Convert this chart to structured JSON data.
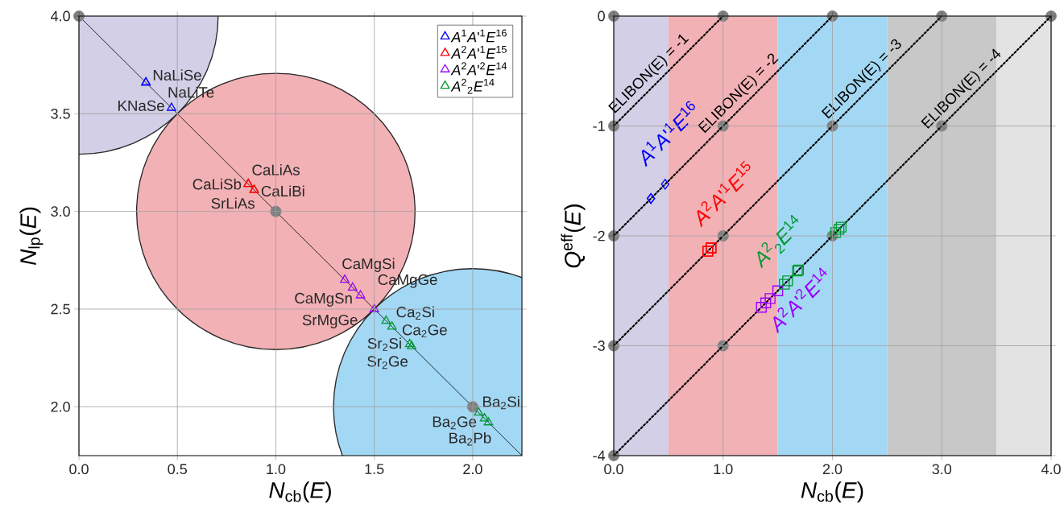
{
  "chart_data": [
    {
      "type": "scatter",
      "xlabel": "*N*$_{cb}$(*E*)",
      "ylabel": "*N*$_{lp}$(*E*)",
      "xlim": [
        0,
        2.25
      ],
      "ylim": [
        1.75,
        4
      ],
      "xticks": [
        {
          "value": 0,
          "label": "0.0"
        },
        {
          "value": 0.5,
          "label": "0.5"
        },
        {
          "value": 1,
          "label": "1.0"
        },
        {
          "value": 1.5,
          "label": "1.5"
        },
        {
          "value": 2,
          "label": "2.0"
        }
      ],
      "yticks": [
        {
          "value": 2,
          "label": "2.0"
        },
        {
          "value": 2.5,
          "label": "2.5"
        },
        {
          "value": 3,
          "label": "3.0"
        },
        {
          "value": 3.5,
          "label": "3.5"
        },
        {
          "value": 4,
          "label": "4.0"
        }
      ],
      "grid": true,
      "legend": "top right",
      "marker": "triangle",
      "series": [
        {
          "type": "line",
          "marker": "none",
          "color": "#000000",
          "x": [
            0,
            2.25
          ],
          "values": [
            4,
            1.75
          ]
        },
        {
          "type": "scatter",
          "marker": "circle",
          "color": "#808080",
          "x": [
            0,
            1,
            2
          ],
          "values": [
            4,
            3,
            2
          ]
        },
        {
          "name": "*A*$^{1}$*A*'$^{1}$*E*$^{16}$",
          "color": "#0000ff",
          "x": [
            0.34,
            0.34,
            0.47
          ],
          "values": [
            3.66,
            3.66,
            3.53
          ]
        },
        {
          "name": "*A*$^{2}$*A*'$^{1}$*E*$^{15}$",
          "color": "#ff0000",
          "x": [
            0.86,
            0.86,
            0.89,
            0.89
          ],
          "values": [
            3.14,
            3.14,
            3.11,
            3.11
          ]
        },
        {
          "name": "*A*$^{2}$*A*'$^{2}$*E*$^{14}$",
          "color": "#9900ff",
          "x": [
            1.35,
            1.39,
            1.43,
            1.5
          ],
          "values": [
            2.65,
            2.61,
            2.57,
            2.5
          ]
        },
        {
          "name": "*A*$^{2}$$_{2}$*E*$^{14}$",
          "color": "#009933",
          "x": [
            1.56,
            1.59,
            1.68,
            1.69,
            2.03,
            2.06,
            2.08
          ],
          "values": [
            2.44,
            2.41,
            2.32,
            2.31,
            1.97,
            1.94,
            1.92
          ]
        }
      ],
      "annotations": [
        {
          "text": "NaLiSe",
          "x": 0.34,
          "y": 3.66
        },
        {
          "text": "NaLiTe",
          "x": 0.34,
          "y": 3.66
        },
        {
          "text": "KNaSe",
          "x": 0.47,
          "y": 3.53
        },
        {
          "text": "CaLiAs",
          "x": 0.86,
          "y": 3.14
        },
        {
          "text": "CaLiSb",
          "x": 0.86,
          "y": 3.14
        },
        {
          "text": "SrLiAs",
          "x": 0.89,
          "y": 3.11
        },
        {
          "text": "CaLiBi",
          "x": 0.89,
          "y": 3.11
        },
        {
          "text": "CaMgSi",
          "x": 1.35,
          "y": 2.65
        },
        {
          "text": "CaMgGe",
          "x": 1.39,
          "y": 2.61
        },
        {
          "text": "CaMgSn",
          "x": 1.43,
          "y": 2.57
        },
        {
          "text": "SrMgGe",
          "x": 1.5,
          "y": 2.5
        },
        {
          "text": "Ca$_{2}$Si",
          "x": 1.56,
          "y": 2.44
        },
        {
          "text": "Ca$_{2}$Ge",
          "x": 1.59,
          "y": 2.41
        },
        {
          "text": "Sr$_{2}$Si",
          "x": 1.68,
          "y": 2.32
        },
        {
          "text": "Sr$_{2}$Ge",
          "x": 1.69,
          "y": 2.31
        },
        {
          "text": "Ba$_{2}$Si",
          "x": 2.03,
          "y": 1.97
        },
        {
          "text": "Ba$_{2}$Ge",
          "x": 2.06,
          "y": 1.94
        },
        {
          "text": "Ba$_{2}$Pb",
          "x": 2.08,
          "y": 1.92
        }
      ]
    },
    {
      "type": "scatter",
      "xlabel": "*N*$_{cb}$(*E*)",
      "ylabel": "*Q*$^{eff}$(*E*)",
      "xlim": [
        0,
        4
      ],
      "ylim": [
        -4,
        0
      ],
      "xticks": [
        {
          "value": 0,
          "label": "0.0"
        },
        {
          "value": 1,
          "label": "1.0"
        },
        {
          "value": 2,
          "label": "2.0"
        },
        {
          "value": 3,
          "label": "3.0"
        },
        {
          "value": 4,
          "label": "4.0"
        }
      ],
      "yticks": [
        -4,
        -3,
        -2,
        -1,
        0
      ],
      "grid": true,
      "marker": "square",
      "bands": [
        {
          "axis": "x",
          "from": 0,
          "to": 0.5,
          "color": "#d2cfe6"
        },
        {
          "axis": "x",
          "from": 0.5,
          "to": 1.5,
          "color": "#f2b1b5"
        },
        {
          "axis": "x",
          "from": 1.5,
          "to": 2.5,
          "color": "#a3d8f4"
        },
        {
          "axis": "x",
          "from": 2.5,
          "to": 3.5,
          "color": "#c8c8c8"
        },
        {
          "axis": "x",
          "from": 3.5,
          "to": 4,
          "color": "#e3e3e3"
        }
      ],
      "series": [
        {
          "type": "scatter",
          "marker": "circle",
          "color": "#808080",
          "x": [
            0,
            1,
            2,
            3,
            4,
            0,
            1,
            2,
            3,
            0,
            1,
            2,
            0,
            1,
            0
          ],
          "values": [
            0,
            0,
            0,
            0,
            0,
            -1,
            -1,
            -1,
            -1,
            -2,
            -2,
            -2,
            -3,
            -3,
            -4
          ]
        },
        {
          "type": "line",
          "marker": "none",
          "line_style": "dotted",
          "name": "ELIBON(E) = -1",
          "color": "#000000",
          "x": [
            0,
            1
          ],
          "values": [
            -1,
            0
          ]
        },
        {
          "type": "line",
          "marker": "none",
          "line_style": "dotted",
          "name": "ELIBON(E) = -2",
          "color": "#000000",
          "x": [
            0,
            2
          ],
          "values": [
            -2,
            0
          ]
        },
        {
          "type": "line",
          "marker": "none",
          "line_style": "dotted",
          "name": "ELIBON(E) = -3",
          "color": "#000000",
          "x": [
            0,
            3
          ],
          "values": [
            -3,
            0
          ]
        },
        {
          "type": "line",
          "marker": "none",
          "line_style": "dotted",
          "name": "ELIBON(E) = -4",
          "color": "#000000",
          "x": [
            0,
            4
          ],
          "values": [
            -4,
            0
          ]
        },
        {
          "name": "*A*$^{1}$*A*'$^{1}$*E*$^{16}$",
          "marker": "diamond",
          "color": "#0000ff",
          "x": [
            0.34,
            0.34,
            0.47
          ],
          "values": [
            -1.66,
            -1.66,
            -1.53
          ]
        },
        {
          "name": "*A*$^{2}$*A*'$^{1}$*E*$^{15}$",
          "color": "#ff0000",
          "x": [
            0.86,
            0.86,
            0.89,
            0.89
          ],
          "values": [
            -2.14,
            -2.14,
            -2.11,
            -2.11
          ]
        },
        {
          "name": "*A*$^{2}$*A*'$^{2}$*E*$^{14}$",
          "color": "#9900ff",
          "x": [
            1.35,
            1.39,
            1.43,
            1.5
          ],
          "values": [
            -2.65,
            -2.61,
            -2.57,
            -2.5
          ]
        },
        {
          "name": "*A*$^{2}$$_{2}$*E*$^{14}$",
          "color": "#009933",
          "x": [
            1.56,
            1.59,
            1.68,
            1.69,
            2.03,
            2.06,
            2.08
          ],
          "values": [
            -2.44,
            -2.41,
            -2.32,
            -2.31,
            -1.97,
            -1.94,
            -1.92
          ]
        }
      ]
    }
  ]
}
